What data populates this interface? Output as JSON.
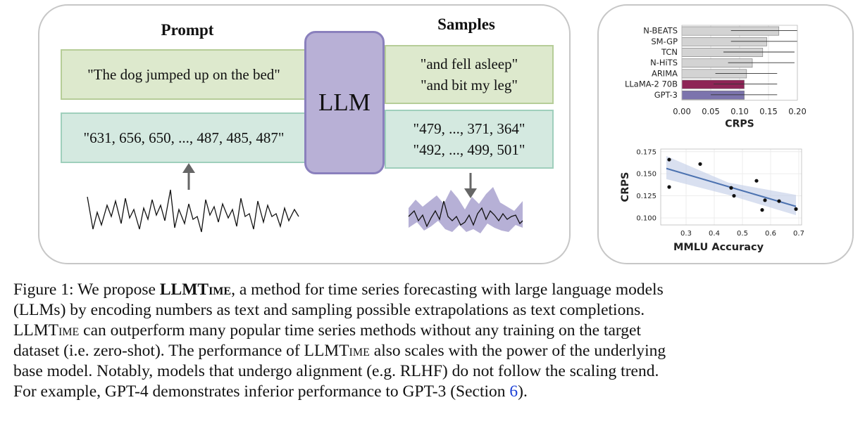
{
  "diagram": {
    "prompt_header": "Prompt",
    "samples_header": "Samples",
    "llm_label": "LLM",
    "prompt_text": "\"The dog jumped up on the bed\"",
    "prompt_numbers": "\"631, 656, 650, ..., 487, 485, 487\"",
    "sample_text_1": "\"and fell asleep\"",
    "sample_text_2": "\"and bit my leg\"",
    "sample_numbers_1": "\"479, ..., 371, 364\"",
    "sample_numbers_2": "\"492, ..., 499, 501\"",
    "colors": {
      "llm_fill": "#b8b0d6",
      "green_box": "#dde9cd",
      "teal_box": "#d4e9e0",
      "band": "#9e95c8"
    }
  },
  "chart_data": [
    {
      "type": "bar",
      "orientation": "horizontal",
      "categories": [
        "N-BEATS",
        "SM-GP",
        "TCN",
        "N-HiTS",
        "ARIMA",
        "LLaMA-2 70B",
        "GPT-3"
      ],
      "values": [
        0.168,
        0.147,
        0.14,
        0.122,
        0.112,
        0.108,
        0.108
      ],
      "error_low": [
        0.085,
        0.085,
        0.072,
        0.08,
        0.058,
        0.055,
        0.05
      ],
      "error_high": [
        0.2,
        0.2,
        0.195,
        0.195,
        0.165,
        0.165,
        0.165
      ],
      "bar_colors": [
        "#d3d3d3",
        "#d3d3d3",
        "#d3d3d3",
        "#d3d3d3",
        "#d3d3d3",
        "#8e2456",
        "#7c74ad"
      ],
      "xlabel": "CRPS",
      "xlim": [
        0,
        0.2
      ],
      "xticks": [
        "0.00",
        "0.05",
        "0.10",
        "0.15",
        "0.20"
      ],
      "grid": true
    },
    {
      "type": "scatter",
      "x": [
        0.24,
        0.35,
        0.46,
        0.47,
        0.55,
        0.58,
        0.57,
        0.63,
        0.69,
        0.24
      ],
      "y": [
        0.166,
        0.161,
        0.134,
        0.125,
        0.142,
        0.12,
        0.109,
        0.119,
        0.11,
        0.135
      ],
      "trend": [
        [
          0.23,
          0.156
        ],
        [
          0.69,
          0.113
        ]
      ],
      "xlabel": "MMLU Accuracy",
      "ylabel": "CRPS",
      "xlim": [
        0.21,
        0.71
      ],
      "ylim": [
        0.092,
        0.178
      ],
      "xticks": [
        "0.3",
        "0.4",
        "0.5",
        "0.6",
        "0.7"
      ],
      "yticks": [
        "0.100",
        "0.125",
        "0.150",
        "0.175"
      ],
      "grid": true
    }
  ],
  "caption": {
    "figure_label": "Figure 1:",
    "line1_a": "We propose ",
    "method_name_bold": "LLMTime",
    "line1_b": ", a method for time series forecasting with large language models",
    "line2": "(LLMs) by encoding numbers as text and sampling possible extrapolations as text completions.",
    "line3_method": "LLMTime",
    "line3_b": " can outperform many popular time series methods without any training on the target",
    "line4_a": "dataset (i.e. zero-shot). The performance of ",
    "line4_method": "LLMTime",
    "line4_b": " also scales with the power of the underlying",
    "line5": "base model. Notably, models that undergo alignment (e.g. RLHF) do not follow the scaling trend.",
    "line6_a": "For example, GPT-4 demonstrates inferior performance to GPT-3 (Section ",
    "section_ref": "6",
    "line6_b": ")."
  }
}
